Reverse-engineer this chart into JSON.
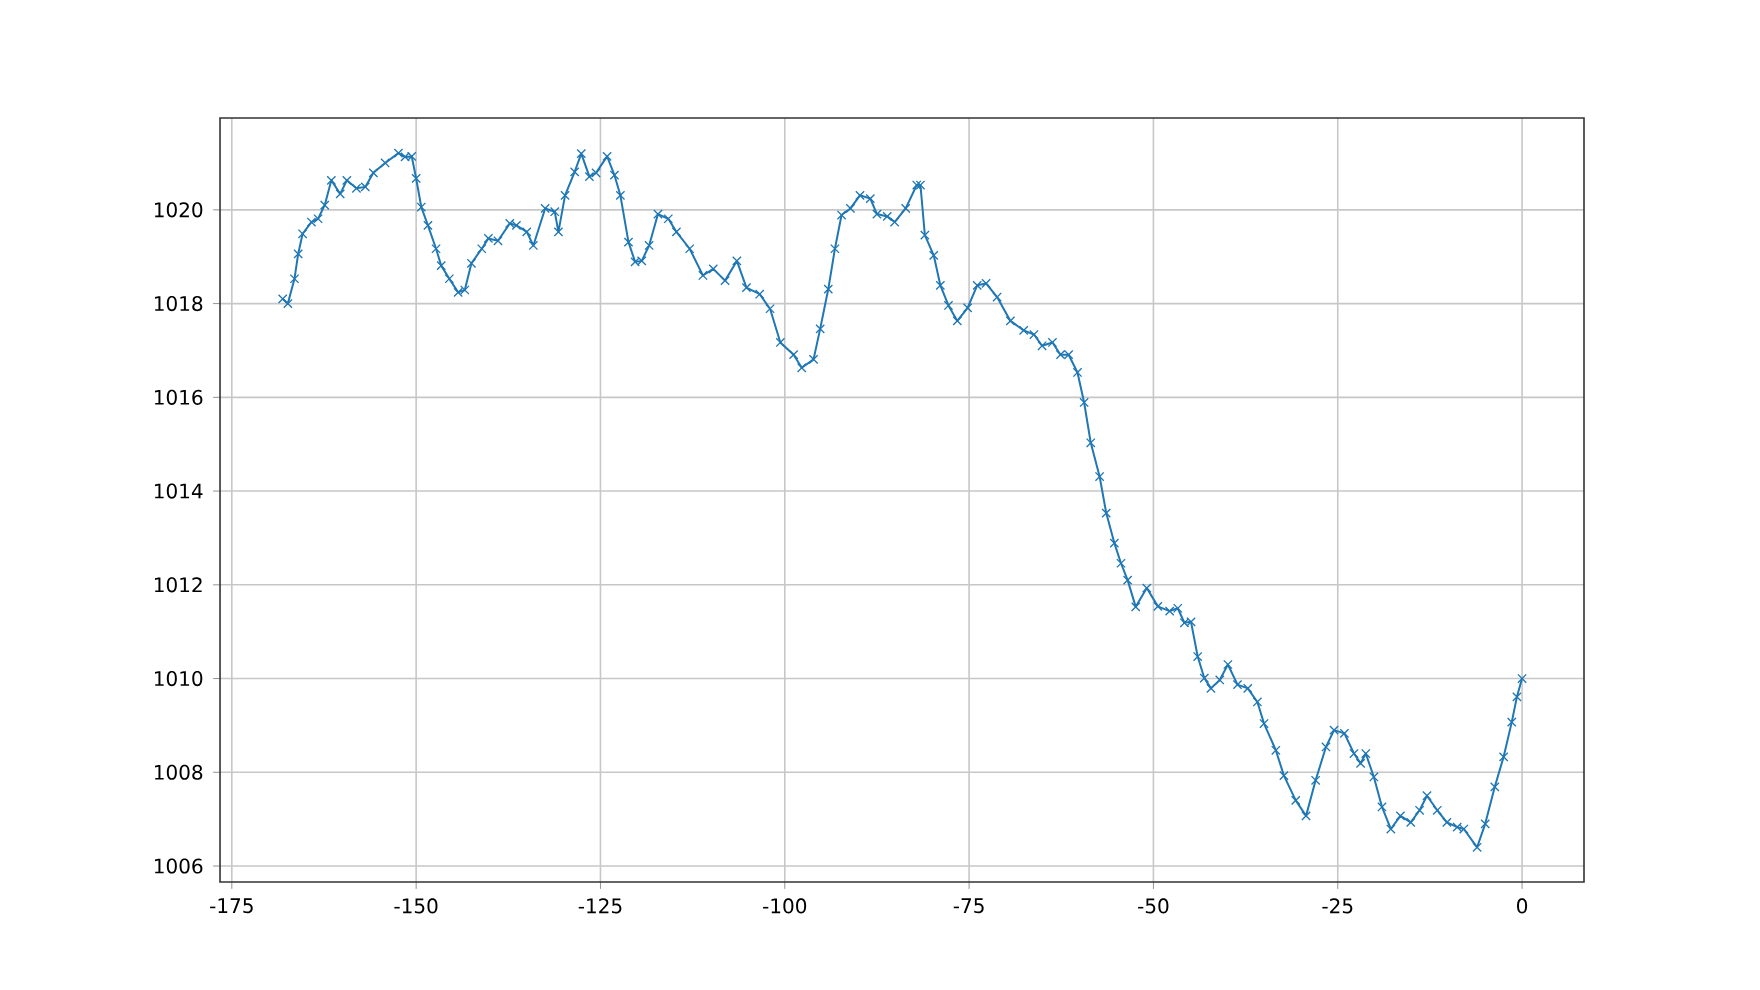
{
  "chart_data": {
    "type": "line",
    "color": "#1f77b4",
    "marker": "cross",
    "grid": true,
    "xlim": [
      -176.6,
      8.4
    ],
    "ylim": [
      1005.66,
      1021.96
    ],
    "xticks": [
      -175,
      -150,
      -125,
      -100,
      -75,
      -50,
      -25,
      0
    ],
    "yticks": [
      1006,
      1008,
      1010,
      1012,
      1014,
      1016,
      1018,
      1020
    ],
    "x": [
      -168.1,
      -167.4,
      -166.5,
      -166.0,
      -165.4,
      -164.2,
      -163.3,
      -162.4,
      -161.5,
      -160.3,
      -159.4,
      -158.1,
      -156.9,
      -155.8,
      -154.2,
      -152.4,
      -151.5,
      -150.6,
      -150.0,
      -149.3,
      -148.4,
      -147.3,
      -146.6,
      -145.5,
      -144.3,
      -143.4,
      -142.5,
      -141.1,
      -140.2,
      -138.9,
      -137.3,
      -136.4,
      -135.0,
      -134.1,
      -132.5,
      -131.2,
      -130.7,
      -129.8,
      -128.5,
      -127.6,
      -126.5,
      -125.6,
      -124.1,
      -123.1,
      -122.3,
      -121.2,
      -120.3,
      -119.4,
      -118.4,
      -117.2,
      -115.8,
      -114.7,
      -112.9,
      -111.1,
      -109.7,
      -108.1,
      -106.5,
      -105.2,
      -103.4,
      -102.0,
      -100.6,
      -98.8,
      -97.7,
      -96.1,
      -95.2,
      -94.1,
      -93.2,
      -92.3,
      -91.1,
      -89.8,
      -88.4,
      -87.5,
      -86.1,
      -85.1,
      -83.6,
      -82.1,
      -81.6,
      -81.0,
      -79.8,
      -78.9,
      -77.8,
      -76.6,
      -75.2,
      -73.9,
      -72.7,
      -71.2,
      -69.4,
      -67.6,
      -66.2,
      -65.1,
      -63.7,
      -62.6,
      -61.5,
      -60.3,
      -59.4,
      -58.5,
      -57.3,
      -56.4,
      -55.3,
      -54.4,
      -53.5,
      -52.4,
      -50.9,
      -49.4,
      -47.8,
      -46.7,
      -45.8,
      -44.9,
      -44.0,
      -43.1,
      -42.2,
      -41.0,
      -39.9,
      -38.6,
      -37.2,
      -35.9,
      -35.0,
      -33.4,
      -32.3,
      -30.7,
      -29.3,
      -28.0,
      -26.6,
      -25.5,
      -24.1,
      -22.8,
      -21.9,
      -21.2,
      -20.1,
      -19.0,
      -17.8,
      -16.5,
      -15.1,
      -13.9,
      -12.9,
      -11.5,
      -10.2,
      -8.8,
      -7.9,
      -6.1,
      -5.0,
      -3.7,
      -2.5,
      -1.4,
      -0.7,
      0.0
    ],
    "values": [
      1018.1,
      1018.0,
      1018.53,
      1019.06,
      1019.49,
      1019.74,
      1019.81,
      1020.1,
      1020.63,
      1020.34,
      1020.63,
      1020.46,
      1020.49,
      1020.79,
      1021.0,
      1021.21,
      1021.13,
      1021.14,
      1020.67,
      1020.06,
      1019.67,
      1019.17,
      1018.81,
      1018.53,
      1018.24,
      1018.29,
      1018.86,
      1019.17,
      1019.39,
      1019.34,
      1019.71,
      1019.67,
      1019.53,
      1019.24,
      1020.03,
      1019.96,
      1019.53,
      1020.31,
      1020.81,
      1021.2,
      1020.71,
      1020.79,
      1021.14,
      1020.74,
      1020.31,
      1019.31,
      1018.89,
      1018.91,
      1019.24,
      1019.91,
      1019.81,
      1019.53,
      1019.17,
      1018.6,
      1018.74,
      1018.49,
      1018.91,
      1018.34,
      1018.2,
      1017.89,
      1017.17,
      1016.91,
      1016.63,
      1016.81,
      1017.46,
      1018.31,
      1019.17,
      1019.89,
      1020.03,
      1020.31,
      1020.24,
      1019.91,
      1019.86,
      1019.74,
      1020.03,
      1020.53,
      1020.53,
      1019.46,
      1019.03,
      1018.39,
      1017.96,
      1017.63,
      1017.91,
      1018.39,
      1018.43,
      1018.14,
      1017.63,
      1017.43,
      1017.34,
      1017.1,
      1017.17,
      1016.91,
      1016.91,
      1016.53,
      1015.89,
      1015.03,
      1014.31,
      1013.53,
      1012.89,
      1012.46,
      1012.1,
      1011.53,
      1011.93,
      1011.54,
      1011.44,
      1011.5,
      1011.19,
      1011.21,
      1010.47,
      1010.01,
      1009.79,
      1009.97,
      1010.3,
      1009.87,
      1009.79,
      1009.5,
      1009.04,
      1008.47,
      1007.93,
      1007.4,
      1007.07,
      1007.83,
      1008.54,
      1008.9,
      1008.83,
      1008.4,
      1008.19,
      1008.4,
      1007.9,
      1007.26,
      1006.79,
      1007.07,
      1006.93,
      1007.19,
      1007.5,
      1007.19,
      1006.93,
      1006.83,
      1006.79,
      1006.4,
      1006.9,
      1007.69,
      1008.33,
      1009.07,
      1009.61,
      1010.0
    ]
  }
}
